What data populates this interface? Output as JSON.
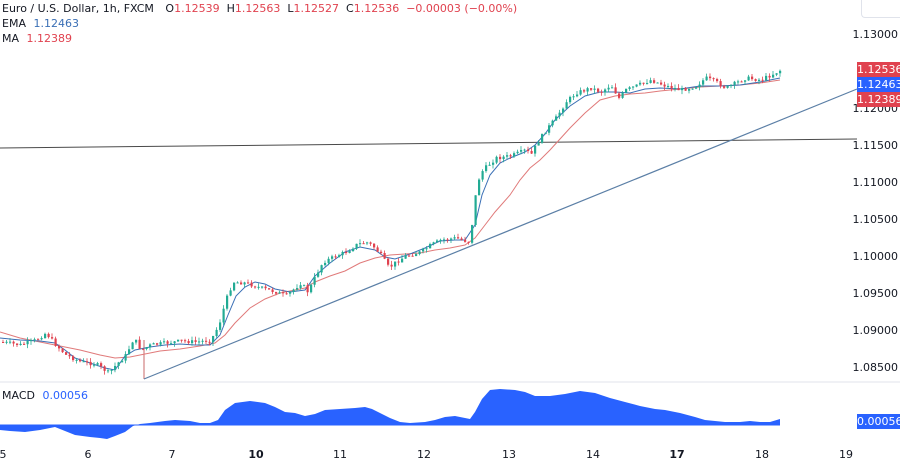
{
  "header": {
    "symbol": "Euro / U.S. Dollar, 1h, FXCM",
    "open_key": "O",
    "open": "1.12539",
    "high_key": "H",
    "high": "1.12563",
    "low_key": "L",
    "low": "1.12527",
    "close_key": "C",
    "close": "1.12536",
    "change": "−0.00003 (−0.00%)"
  },
  "indicators": {
    "ema_label": "EMA",
    "ema_value": "1.12463",
    "ma_label": "MA",
    "ma_value": "1.12389",
    "macd_label": "MACD",
    "macd_value": "0.00056"
  },
  "price_tags": {
    "last": "1.12536",
    "ema": "1.12463",
    "ma": "1.12389",
    "macd": "0.00056"
  },
  "colors": {
    "up": "#22ab94",
    "down": "#e0424f",
    "ema": "#3a6fb5",
    "ma": "#e0424f",
    "macd": "#2962ff",
    "trendline": "#5b7fa6",
    "hline": "#4a4a4a"
  },
  "chart_data": {
    "type": "line",
    "title": "Euro / U.S. Dollar, 1h, FXCM",
    "xlabel": "",
    "ylabel": "",
    "price_axis_ticks": [
      "1.13000",
      "1.12000",
      "1.11500",
      "1.11000",
      "1.10500",
      "1.10000",
      "1.09500",
      "1.09000",
      "1.08500"
    ],
    "time_axis_ticks": [
      "5",
      "6",
      "7",
      "10",
      "11",
      "12",
      "13",
      "14",
      "17",
      "18",
      "19"
    ],
    "ylim": [
      1.083,
      1.134
    ],
    "close_series": {
      "x": [
        "5",
        "6",
        "7",
        "10",
        "11",
        "12",
        "13",
        "14",
        "17",
        "18"
      ],
      "values": [
        1.0882,
        1.0852,
        1.0888,
        1.0965,
        1.102,
        1.1015,
        1.1148,
        1.1245,
        1.1235,
        1.1253
      ]
    },
    "ema_series": {
      "x": [
        "5",
        "6",
        "7",
        "10",
        "11",
        "12",
        "13",
        "14",
        "17",
        "18"
      ],
      "values": [
        1.0885,
        1.0858,
        1.088,
        1.095,
        1.1008,
        1.101,
        1.113,
        1.124,
        1.1238,
        1.1246
      ]
    },
    "ma_series": {
      "x": [
        "5",
        "6",
        "7",
        "10",
        "11",
        "12",
        "13",
        "14",
        "17",
        "18"
      ],
      "values": [
        1.0895,
        1.087,
        1.0868,
        1.093,
        1.0995,
        1.1005,
        1.108,
        1.1225,
        1.1236,
        1.1239
      ]
    },
    "horizontal_line": 1.1158,
    "trendline": {
      "from": {
        "x": "6.7",
        "y": 1.0842
      },
      "to": {
        "x": "19",
        "y": 1.1232
      }
    },
    "macd": {
      "x": [
        "5",
        "6",
        "7",
        "10",
        "11",
        "12",
        "13",
        "14",
        "17",
        "18"
      ],
      "values": [
        -0.0002,
        -0.0004,
        0.0001,
        0.0009,
        0.0006,
        0.0004,
        0.0012,
        0.001,
        0.0003,
        0.00056
      ]
    },
    "last_values": {
      "close": 1.12536,
      "ema": 1.12463,
      "ma": 1.12389,
      "macd": 0.00056
    },
    "grid": false,
    "legend_position": "top-left"
  }
}
